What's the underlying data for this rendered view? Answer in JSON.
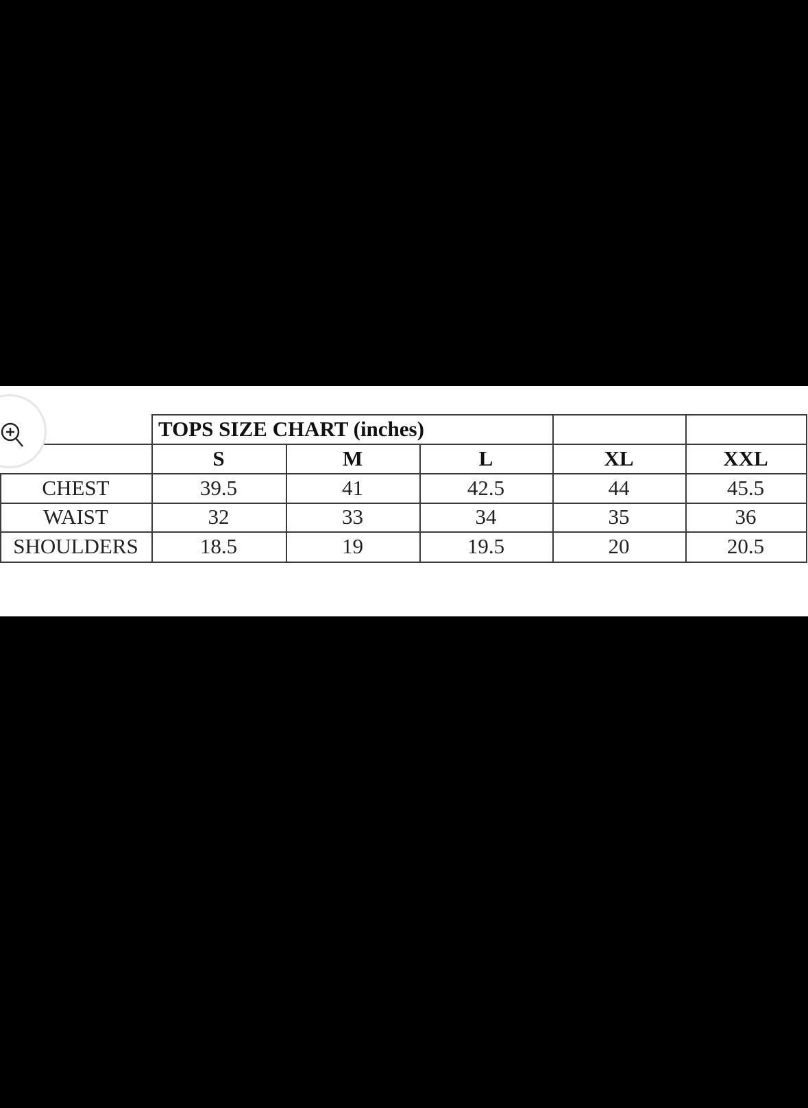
{
  "table": {
    "title": "TOPS SIZE CHART (inches)",
    "sizes": [
      "S",
      "M",
      "L",
      "XL",
      "XXL"
    ],
    "rows": [
      {
        "label": "CHEST",
        "values": [
          "39.5",
          "41",
          "42.5",
          "44",
          "45.5"
        ]
      },
      {
        "label": "WAIST",
        "values": [
          "32",
          "33",
          "34",
          "35",
          "36"
        ]
      },
      {
        "label": "SHOULDERS",
        "values": [
          "18.5",
          "19",
          "19.5",
          "20",
          "20.5"
        ]
      }
    ]
  },
  "zoom_button": {
    "icon": "zoom-in-icon"
  }
}
